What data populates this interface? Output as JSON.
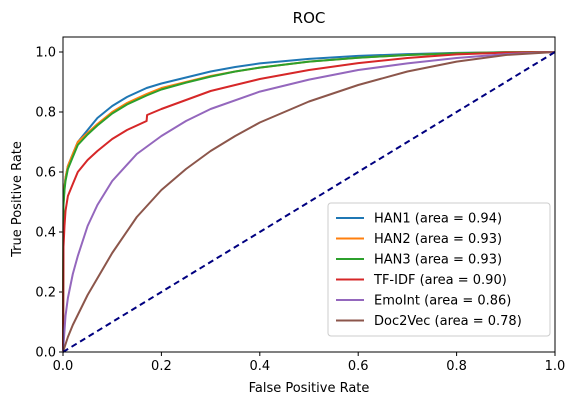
{
  "chart_data": {
    "type": "line",
    "title": "ROC",
    "xlabel": "False Positive Rate",
    "ylabel": "True Positive Rate",
    "xlim": [
      0.0,
      1.0
    ],
    "ylim": [
      0.0,
      1.05
    ],
    "xticks": [
      "0.0",
      "0.2",
      "0.4",
      "0.6",
      "0.8",
      "1.0"
    ],
    "yticks": [
      "0.0",
      "0.2",
      "0.4",
      "0.6",
      "0.8",
      "1.0"
    ],
    "grid": false,
    "legend_position": "lower-right",
    "series": [
      {
        "name": "HAN1 (area = 0.94)",
        "color": "#1f77b4",
        "x": [
          0.0,
          0.001,
          0.003,
          0.005,
          0.01,
          0.02,
          0.03,
          0.05,
          0.07,
          0.1,
          0.13,
          0.17,
          0.2,
          0.25,
          0.3,
          0.35,
          0.4,
          0.5,
          0.6,
          0.7,
          0.8,
          0.9,
          1.0
        ],
        "y": [
          0.0,
          0.5,
          0.55,
          0.58,
          0.62,
          0.66,
          0.7,
          0.74,
          0.78,
          0.82,
          0.85,
          0.88,
          0.895,
          0.915,
          0.935,
          0.95,
          0.962,
          0.977,
          0.987,
          0.993,
          0.997,
          0.999,
          1.0
        ]
      },
      {
        "name": "HAN2 (area = 0.93)",
        "color": "#ff7f0e",
        "x": [
          0.0,
          0.001,
          0.003,
          0.005,
          0.01,
          0.02,
          0.03,
          0.05,
          0.07,
          0.1,
          0.13,
          0.17,
          0.2,
          0.25,
          0.3,
          0.35,
          0.4,
          0.5,
          0.6,
          0.7,
          0.8,
          0.9,
          1.0
        ],
        "y": [
          0.0,
          0.5,
          0.55,
          0.58,
          0.62,
          0.66,
          0.7,
          0.73,
          0.76,
          0.8,
          0.83,
          0.86,
          0.88,
          0.9,
          0.92,
          0.935,
          0.948,
          0.968,
          0.981,
          0.99,
          0.996,
          0.999,
          1.0
        ]
      },
      {
        "name": "HAN3 (area = 0.93)",
        "color": "#2ca02c",
        "x": [
          0.0,
          0.001,
          0.003,
          0.005,
          0.01,
          0.02,
          0.03,
          0.05,
          0.07,
          0.1,
          0.13,
          0.17,
          0.2,
          0.25,
          0.3,
          0.35,
          0.4,
          0.5,
          0.6,
          0.7,
          0.8,
          0.9,
          1.0
        ],
        "y": [
          0.0,
          0.49,
          0.54,
          0.57,
          0.61,
          0.65,
          0.69,
          0.725,
          0.755,
          0.795,
          0.825,
          0.855,
          0.875,
          0.898,
          0.918,
          0.935,
          0.948,
          0.968,
          0.981,
          0.99,
          0.996,
          0.999,
          1.0
        ]
      },
      {
        "name": "TF-IDF (area = 0.90)",
        "color": "#d62728",
        "x": [
          0.0,
          0.001,
          0.003,
          0.005,
          0.01,
          0.02,
          0.03,
          0.05,
          0.07,
          0.1,
          0.13,
          0.17,
          0.171,
          0.2,
          0.25,
          0.3,
          0.35,
          0.4,
          0.5,
          0.6,
          0.7,
          0.8,
          0.9,
          1.0
        ],
        "y": [
          0.0,
          0.35,
          0.42,
          0.47,
          0.52,
          0.56,
          0.6,
          0.64,
          0.67,
          0.71,
          0.74,
          0.77,
          0.79,
          0.81,
          0.84,
          0.87,
          0.89,
          0.91,
          0.94,
          0.963,
          0.98,
          0.992,
          0.998,
          1.0
        ]
      },
      {
        "name": "EmoInt (area = 0.86)",
        "color": "#9467bd",
        "x": [
          0.0,
          0.005,
          0.01,
          0.02,
          0.03,
          0.05,
          0.07,
          0.1,
          0.15,
          0.2,
          0.25,
          0.3,
          0.4,
          0.5,
          0.6,
          0.7,
          0.8,
          0.9,
          1.0
        ],
        "y": [
          0.0,
          0.12,
          0.18,
          0.26,
          0.32,
          0.42,
          0.49,
          0.57,
          0.66,
          0.72,
          0.77,
          0.81,
          0.868,
          0.908,
          0.94,
          0.962,
          0.98,
          0.993,
          1.0
        ]
      },
      {
        "name": "Doc2Vec (area = 0.78)",
        "color": "#8c564b",
        "x": [
          0.0,
          0.01,
          0.02,
          0.05,
          0.1,
          0.15,
          0.2,
          0.25,
          0.3,
          0.35,
          0.4,
          0.5,
          0.6,
          0.7,
          0.8,
          0.9,
          1.0
        ],
        "y": [
          0.0,
          0.05,
          0.09,
          0.19,
          0.33,
          0.45,
          0.54,
          0.61,
          0.67,
          0.72,
          0.765,
          0.835,
          0.89,
          0.935,
          0.968,
          0.99,
          1.0
        ]
      },
      {
        "name": "",
        "color": "#000080",
        "dashed": true,
        "x": [
          0.0,
          1.0
        ],
        "y": [
          0.0,
          1.0
        ]
      }
    ]
  }
}
